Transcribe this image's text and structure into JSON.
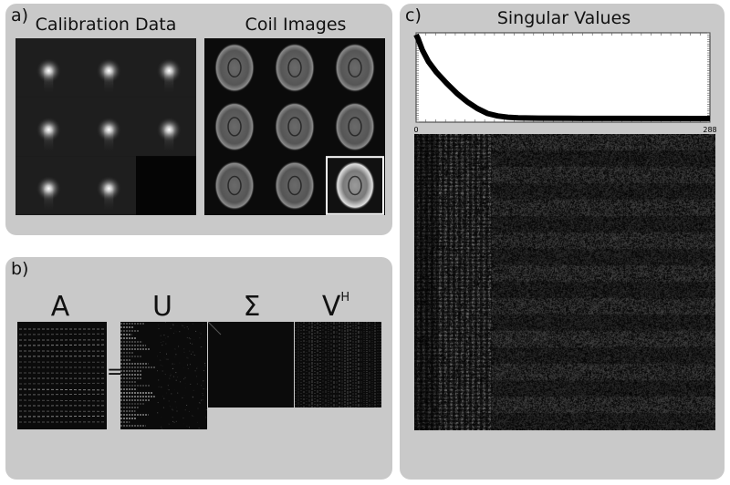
{
  "panel_a": {
    "letter": "a)",
    "calibration_title": "Calibration Data",
    "coil_title": "Coil Images"
  },
  "panel_b": {
    "letter": "b)",
    "a_symbol": "A",
    "equals": "=",
    "u_symbol": "U",
    "sigma_symbol": "Σ",
    "v_symbol": "V",
    "v_superscript": "H"
  },
  "panel_c": {
    "letter": "c)",
    "title": "Singular Values",
    "x_tick_start": "0",
    "x_tick_end": "288"
  },
  "chart_data": {
    "type": "line",
    "title": "Singular Values",
    "xlim": [
      0,
      288
    ],
    "x": [
      0,
      2,
      6,
      12,
      20,
      30,
      40,
      50,
      60,
      70,
      80,
      90,
      100,
      120,
      150,
      200,
      288
    ],
    "y": [
      1.0,
      0.95,
      0.82,
      0.68,
      0.55,
      0.42,
      0.3,
      0.2,
      0.12,
      0.06,
      0.03,
      0.015,
      0.008,
      0.004,
      0.002,
      0.001,
      0.0
    ]
  }
}
